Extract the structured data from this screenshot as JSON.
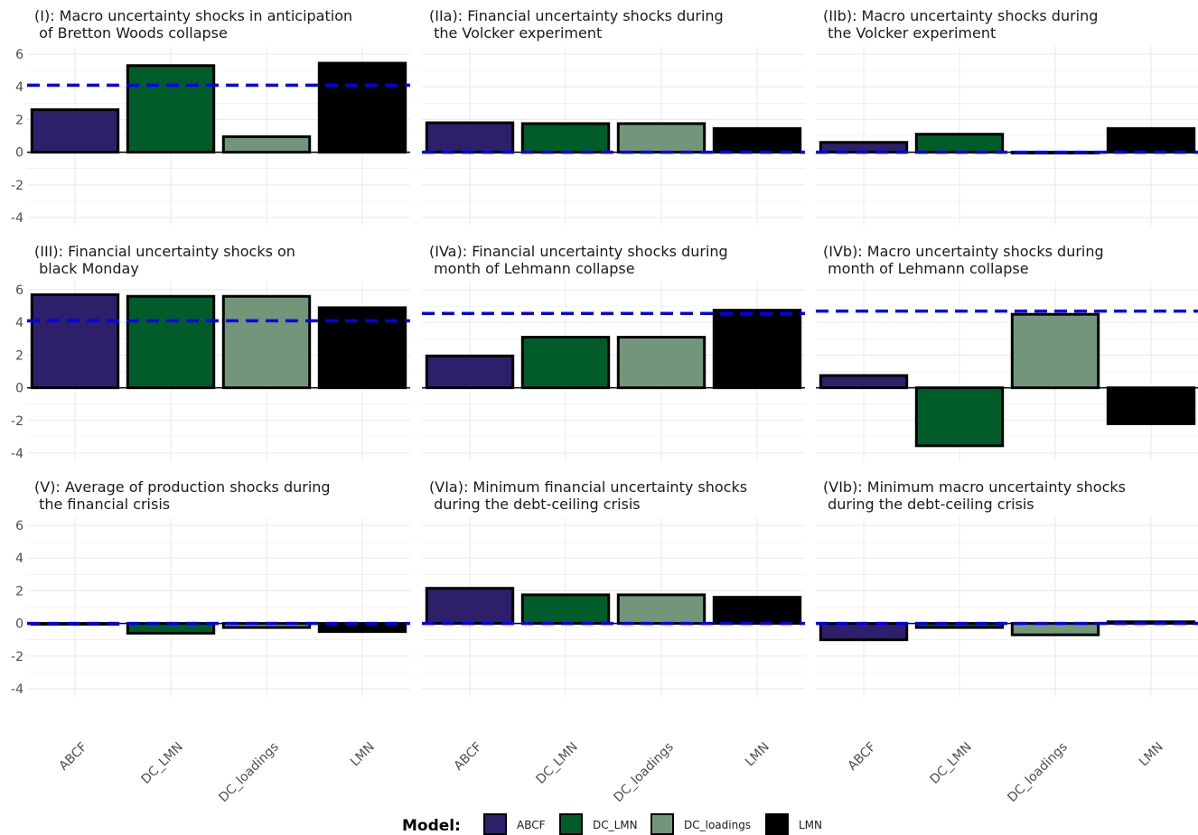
{
  "colors": {
    "ABCF": "#2e1f6b",
    "DC_LMN": "#005c29",
    "DC_loadings": "#73967a",
    "LMN": "#000000",
    "reference_line": "#0000ee",
    "grid": "#ebebeb"
  },
  "legend": {
    "title": "Model:",
    "items": [
      "ABCF",
      "DC_LMN",
      "DC_loadings",
      "LMN"
    ]
  },
  "chart_data": [
    {
      "type": "bar",
      "title_lines": [
        "(I): Macro uncertainty shocks in anticipation",
        " of Bretton Woods collapse"
      ],
      "categories": [
        "ABCF",
        "DC_LMN",
        "DC_loadings",
        "LMN"
      ],
      "values": [
        2.6,
        5.3,
        0.95,
        5.45
      ],
      "reference_line": 4.1,
      "ylim": [
        -4.5,
        6.5
      ],
      "yticks": [
        -4,
        -2,
        0,
        2,
        4,
        6
      ]
    },
    {
      "type": "bar",
      "title_lines": [
        "(IIa): Financial uncertainty shocks during",
        " the Volcker experiment"
      ],
      "categories": [
        "ABCF",
        "DC_LMN",
        "DC_loadings",
        "LMN"
      ],
      "values": [
        1.8,
        1.75,
        1.75,
        1.45
      ],
      "reference_line": 0.0,
      "ylim": [
        -4.5,
        6.5
      ],
      "yticks": [
        -4,
        -2,
        0,
        2,
        4,
        6
      ]
    },
    {
      "type": "bar",
      "title_lines": [
        "(IIb): Macro uncertainty shocks during",
        " the Volcker experiment"
      ],
      "categories": [
        "ABCF",
        "DC_LMN",
        "DC_loadings",
        "LMN"
      ],
      "values": [
        0.6,
        1.1,
        0.0,
        1.45
      ],
      "reference_line": 0.0,
      "ylim": [
        -4.5,
        6.5
      ],
      "yticks": [
        -4,
        -2,
        0,
        2,
        4,
        6
      ]
    },
    {
      "type": "bar",
      "title_lines": [
        "(III): Financial uncertainty shocks on",
        " black Monday"
      ],
      "categories": [
        "ABCF",
        "DC_LMN",
        "DC_loadings",
        "LMN"
      ],
      "values": [
        5.7,
        5.6,
        5.6,
        4.9
      ],
      "reference_line": 4.1,
      "ylim": [
        -4.5,
        6.5
      ],
      "yticks": [
        -4,
        -2,
        0,
        2,
        4,
        6
      ]
    },
    {
      "type": "bar",
      "title_lines": [
        "(IVa): Financial uncertainty shocks during",
        " month of Lehmann collapse"
      ],
      "categories": [
        "ABCF",
        "DC_LMN",
        "DC_loadings",
        "LMN"
      ],
      "values": [
        1.95,
        3.1,
        3.1,
        4.75
      ],
      "reference_line": 4.55,
      "ylim": [
        -4.5,
        6.5
      ],
      "yticks": [
        -4,
        -2,
        0,
        2,
        4,
        6
      ]
    },
    {
      "type": "bar",
      "title_lines": [
        "(IVb): Macro uncertainty shocks during",
        " month of Lehmann collapse"
      ],
      "categories": [
        "ABCF",
        "DC_LMN",
        "DC_loadings",
        "LMN"
      ],
      "values": [
        0.75,
        -3.55,
        4.5,
        -2.2
      ],
      "reference_line": 4.7,
      "ylim": [
        -4.5,
        6.5
      ],
      "yticks": [
        -4,
        -2,
        0,
        2,
        4,
        6
      ]
    },
    {
      "type": "bar",
      "title_lines": [
        "(V): Average of production shocks during",
        " the financial crisis"
      ],
      "categories": [
        "ABCF",
        "DC_LMN",
        "DC_loadings",
        "LMN"
      ],
      "values": [
        -0.05,
        -0.6,
        -0.25,
        -0.5
      ],
      "reference_line": 0.0,
      "ylim": [
        -4.5,
        6.5
      ],
      "yticks": [
        -4,
        -2,
        0,
        2,
        4,
        6
      ]
    },
    {
      "type": "bar",
      "title_lines": [
        "(VIa): Minimum financial uncertainty shocks",
        " during the debt-ceiling crisis"
      ],
      "categories": [
        "ABCF",
        "DC_LMN",
        "DC_loadings",
        "LMN"
      ],
      "values": [
        2.15,
        1.75,
        1.75,
        1.6
      ],
      "reference_line": 0.0,
      "ylim": [
        -4.5,
        6.5
      ],
      "yticks": [
        -4,
        -2,
        0,
        2,
        4,
        6
      ]
    },
    {
      "type": "bar",
      "title_lines": [
        "(VIb): Minimum macro uncertainty shocks",
        " during the debt-ceiling crisis"
      ],
      "categories": [
        "ABCF",
        "DC_LMN",
        "DC_loadings",
        "LMN"
      ],
      "values": [
        -1.0,
        -0.25,
        -0.7,
        0.1
      ],
      "reference_line": 0.0,
      "ylim": [
        -4.5,
        6.5
      ],
      "yticks": [
        -4,
        -2,
        0,
        2,
        4,
        6
      ]
    }
  ]
}
